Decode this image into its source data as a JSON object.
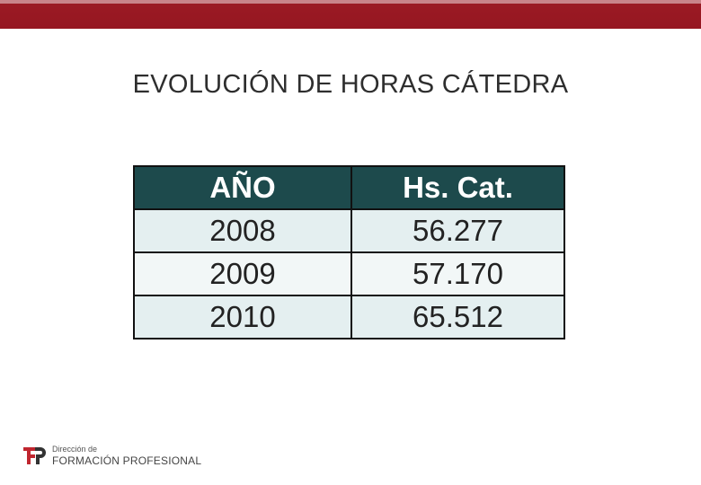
{
  "slide": {
    "title": "EVOLUCIÓN DE HORAS CÁTEDRA"
  },
  "table": {
    "headers": [
      "AÑO",
      "Hs. Cat."
    ],
    "rows": [
      [
        "2008",
        "56.277"
      ],
      [
        "2009",
        "57.170"
      ],
      [
        "2010",
        "65.512"
      ]
    ]
  },
  "logo": {
    "line1": "Dirección de",
    "line2": "FORMACIÓN PROFESIONAL"
  },
  "colors": {
    "top_bar": "#951621",
    "header_fill": "#1d4a4c",
    "logo_red": "#c0262f"
  }
}
